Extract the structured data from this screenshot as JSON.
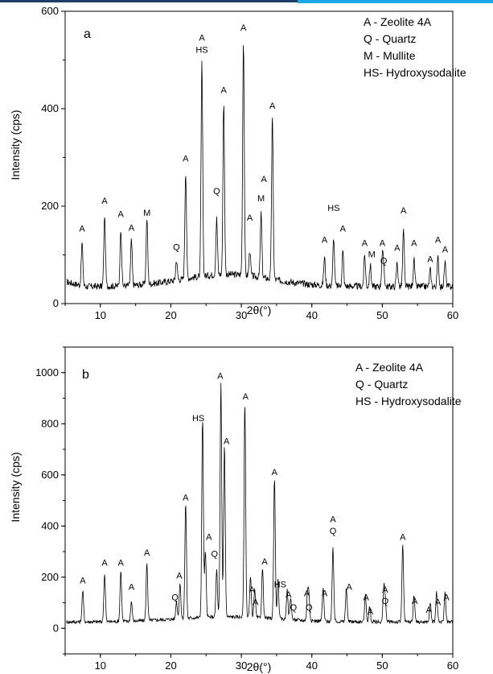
{
  "chart_data": [
    {
      "type": "line",
      "panel_label": "a",
      "xlabel": "2θ(°)",
      "ylabel": "Intensity (cps)",
      "xlim": [
        5,
        60
      ],
      "ylim": [
        0,
        600
      ],
      "x_ticks": [
        10,
        20,
        30,
        40,
        50,
        60
      ],
      "y_ticks": [
        0,
        200,
        400,
        600
      ],
      "grid": false,
      "legend_position": "top-right",
      "legend": [
        "A - Zeolite 4A",
        "Q - Quartz",
        "M - Mullite",
        "HS- Hydroxysodalite"
      ],
      "peaks": [
        {
          "x": 7.4,
          "y": 125,
          "label": "A"
        },
        {
          "x": 10.6,
          "y": 182,
          "label": "A"
        },
        {
          "x": 12.9,
          "y": 155,
          "label": "A"
        },
        {
          "x": 14.4,
          "y": 130,
          "label": "A"
        },
        {
          "x": 16.6,
          "y": 175,
          "label": "M"
        },
        {
          "x": 20.8,
          "y": 90,
          "label": "Q"
        },
        {
          "x": 22.1,
          "y": 272,
          "label": "A"
        },
        {
          "x": 24.4,
          "y": 498,
          "label": "A HS"
        },
        {
          "x": 26.5,
          "y": 175,
          "label": "Q"
        },
        {
          "x": 27.5,
          "y": 413,
          "label": "A"
        },
        {
          "x": 30.3,
          "y": 540,
          "label": "A"
        },
        {
          "x": 31.2,
          "y": 110,
          "label": "A"
        },
        {
          "x": 32.8,
          "y": 185,
          "label": "M A"
        },
        {
          "x": 34.4,
          "y": 381,
          "label": "A"
        },
        {
          "x": 41.8,
          "y": 95,
          "label": "A"
        },
        {
          "x": 43.1,
          "y": 135,
          "label": "HS"
        },
        {
          "x": 44.4,
          "y": 108,
          "label": "A"
        },
        {
          "x": 47.5,
          "y": 100,
          "label": "A"
        },
        {
          "x": 48.3,
          "y": 80,
          "label": "M"
        },
        {
          "x": 50.0,
          "y": 95,
          "label": "A"
        },
        {
          "x": 50.2,
          "y": 70,
          "label": "Q"
        },
        {
          "x": 52.1,
          "y": 85,
          "label": "A"
        },
        {
          "x": 53.0,
          "y": 150,
          "label": "A"
        },
        {
          "x": 54.5,
          "y": 90,
          "label": "A"
        },
        {
          "x": 56.8,
          "y": 70,
          "label": "A"
        },
        {
          "x": 57.9,
          "y": 95,
          "label": "A"
        },
        {
          "x": 58.9,
          "y": 85,
          "label": "A"
        }
      ],
      "label_positions": [
        {
          "text": "A",
          "x": 7.4,
          "y": 148
        },
        {
          "text": "A",
          "x": 10.6,
          "y": 205
        },
        {
          "text": "A",
          "x": 12.9,
          "y": 178
        },
        {
          "text": "A",
          "x": 14.4,
          "y": 150
        },
        {
          "text": "M",
          "x": 16.6,
          "y": 180
        },
        {
          "text": "Q",
          "x": 20.8,
          "y": 110
        },
        {
          "text": "A",
          "x": 22.1,
          "y": 292
        },
        {
          "text": "A",
          "x": 24.4,
          "y": 540
        },
        {
          "text": "HS",
          "x": 24.4,
          "y": 515
        },
        {
          "text": "Q",
          "x": 26.5,
          "y": 225
        },
        {
          "text": "A",
          "x": 27.5,
          "y": 432
        },
        {
          "text": "A",
          "x": 30.3,
          "y": 560
        },
        {
          "text": "A",
          "x": 31.2,
          "y": 170
        },
        {
          "text": "M",
          "x": 32.8,
          "y": 210
        },
        {
          "text": "A",
          "x": 33.2,
          "y": 250
        },
        {
          "text": "A",
          "x": 34.4,
          "y": 400
        },
        {
          "text": "A",
          "x": 41.8,
          "y": 125
        },
        {
          "text": "HS",
          "x": 43.1,
          "y": 190
        },
        {
          "text": "A",
          "x": 44.4,
          "y": 148
        },
        {
          "text": "A",
          "x": 47.5,
          "y": 118
        },
        {
          "text": "M",
          "x": 48.5,
          "y": 95
        },
        {
          "text": "A",
          "x": 50.0,
          "y": 118
        },
        {
          "text": "Q",
          "x": 50.2,
          "y": 82
        },
        {
          "text": "A",
          "x": 52.1,
          "y": 108
        },
        {
          "text": "A",
          "x": 53.0,
          "y": 185
        },
        {
          "text": "A",
          "x": 54.5,
          "y": 118
        },
        {
          "text": "A",
          "x": 56.8,
          "y": 85
        },
        {
          "text": "A",
          "x": 57.9,
          "y": 125
        },
        {
          "text": "A",
          "x": 58.9,
          "y": 105
        }
      ]
    },
    {
      "type": "line",
      "panel_label": "b",
      "xlabel": "2θ(°)",
      "ylabel": "Intensity (cps)",
      "xlim": [
        5,
        60
      ],
      "ylim": [
        -100,
        1100
      ],
      "x_ticks": [
        10,
        20,
        30,
        40,
        50,
        60
      ],
      "y_ticks": [
        0,
        200,
        400,
        600,
        800,
        1000
      ],
      "grid": false,
      "legend_position": "top-right",
      "legend": [
        "A - Zeolite 4A",
        "Q - Quartz",
        "HS - Hydroxysodalite"
      ],
      "peaks": [
        {
          "x": 7.5,
          "y": 145,
          "label": "A"
        },
        {
          "x": 10.6,
          "y": 215,
          "label": "A"
        },
        {
          "x": 12.9,
          "y": 225,
          "label": "A"
        },
        {
          "x": 14.4,
          "y": 105,
          "label": "A"
        },
        {
          "x": 16.6,
          "y": 255,
          "label": "A"
        },
        {
          "x": 20.8,
          "y": 105,
          "label": "Q"
        },
        {
          "x": 21.3,
          "y": 175,
          "label": "A"
        },
        {
          "x": 22.1,
          "y": 490,
          "label": "A"
        },
        {
          "x": 24.5,
          "y": 820,
          "label": "HS"
        },
        {
          "x": 24.9,
          "y": 300,
          "label": "A"
        },
        {
          "x": 26.5,
          "y": 230,
          "label": "Q"
        },
        {
          "x": 27.1,
          "y": 960,
          "label": "A"
        },
        {
          "x": 27.6,
          "y": 720,
          "label": "A"
        },
        {
          "x": 30.5,
          "y": 885,
          "label": "A"
        },
        {
          "x": 31.3,
          "y": 200,
          "label": "A"
        },
        {
          "x": 31.9,
          "y": 150,
          "label": "A"
        },
        {
          "x": 33.0,
          "y": 235,
          "label": "A"
        },
        {
          "x": 34.7,
          "y": 590,
          "label": "A"
        },
        {
          "x": 35.2,
          "y": 190,
          "label": "HS"
        },
        {
          "x": 36.5,
          "y": 150,
          "label": "A"
        },
        {
          "x": 37.0,
          "y": 120,
          "label": "Q"
        },
        {
          "x": 39.4,
          "y": 140,
          "label": "A"
        },
        {
          "x": 39.6,
          "y": 115,
          "label": "Q"
        },
        {
          "x": 41.6,
          "y": 155,
          "label": "A"
        },
        {
          "x": 43.0,
          "y": 315,
          "label": "A Q"
        },
        {
          "x": 44.9,
          "y": 160,
          "label": "A"
        },
        {
          "x": 47.6,
          "y": 130,
          "label": "A"
        },
        {
          "x": 48.2,
          "y": 85,
          "label": "A"
        },
        {
          "x": 50.2,
          "y": 145,
          "label": "A"
        },
        {
          "x": 50.4,
          "y": 115,
          "label": "Q"
        },
        {
          "x": 52.9,
          "y": 330,
          "label": "A"
        },
        {
          "x": 54.5,
          "y": 130,
          "label": "A"
        },
        {
          "x": 56.8,
          "y": 100,
          "label": "A"
        },
        {
          "x": 57.7,
          "y": 140,
          "label": "A"
        },
        {
          "x": 58.9,
          "y": 140,
          "label": "A"
        }
      ],
      "label_positions": [
        {
          "text": "A",
          "x": 7.5,
          "y": 175
        },
        {
          "text": "A",
          "x": 10.6,
          "y": 245
        },
        {
          "text": "A",
          "x": 12.9,
          "y": 245
        },
        {
          "text": "A",
          "x": 14.4,
          "y": 150
        },
        {
          "text": "A",
          "x": 16.6,
          "y": 285
        },
        {
          "text": "Q",
          "x": 20.6,
          "y": 110
        },
        {
          "text": "A",
          "x": 21.2,
          "y": 195
        },
        {
          "text": "A",
          "x": 22.1,
          "y": 500
        },
        {
          "text": "HS",
          "x": 23.9,
          "y": 810
        },
        {
          "text": "A",
          "x": 25.4,
          "y": 345
        },
        {
          "text": "Q",
          "x": 26.2,
          "y": 280
        },
        {
          "text": "A",
          "x": 27.0,
          "y": 975
        },
        {
          "text": "A",
          "x": 27.9,
          "y": 720
        },
        {
          "text": "A",
          "x": 30.6,
          "y": 895
        },
        {
          "text": "A",
          "x": 31.5,
          "y": 140
        },
        {
          "text": "A",
          "x": 32.0,
          "y": 90
        },
        {
          "text": "A",
          "x": 33.3,
          "y": 250
        },
        {
          "text": "A",
          "x": 34.7,
          "y": 600
        },
        {
          "text": "HS",
          "x": 35.5,
          "y": 160
        },
        {
          "text": "A",
          "x": 36.7,
          "y": 120
        },
        {
          "text": "Q",
          "x": 37.4,
          "y": 70
        },
        {
          "text": "A",
          "x": 39.3,
          "y": 125
        },
        {
          "text": "Q",
          "x": 39.6,
          "y": 70
        },
        {
          "text": "A",
          "x": 41.8,
          "y": 125
        },
        {
          "text": "A",
          "x": 43.0,
          "y": 415
        },
        {
          "text": "Q",
          "x": 43.0,
          "y": 370
        },
        {
          "text": "A",
          "x": 45.3,
          "y": 150
        },
        {
          "text": "A",
          "x": 47.7,
          "y": 110
        },
        {
          "text": "A",
          "x": 48.3,
          "y": 55
        },
        {
          "text": "A",
          "x": 50.4,
          "y": 140
        },
        {
          "text": "Q",
          "x": 50.4,
          "y": 95
        },
        {
          "text": "A",
          "x": 52.9,
          "y": 345
        },
        {
          "text": "A",
          "x": 54.6,
          "y": 95
        },
        {
          "text": "A",
          "x": 56.6,
          "y": 60
        },
        {
          "text": "A",
          "x": 57.9,
          "y": 90
        },
        {
          "text": "A",
          "x": 59.1,
          "y": 110
        }
      ]
    }
  ]
}
